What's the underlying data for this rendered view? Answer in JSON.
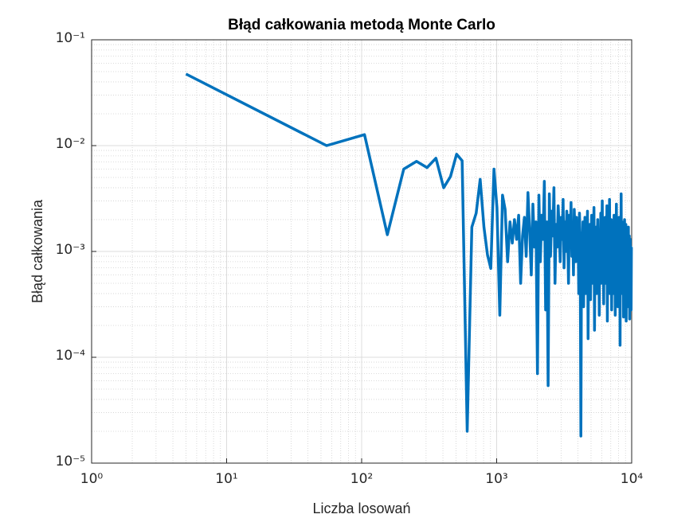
{
  "chart_data": {
    "type": "line",
    "title": "Błąd całkowania metodą Monte Carlo",
    "xlabel": "Liczba losowań",
    "ylabel": "Błąd całkowania",
    "xscale": "log",
    "yscale": "log",
    "grid": true,
    "minor_grid": true,
    "color": "#0072bd",
    "xlim": [
      1,
      10000
    ],
    "ylim": [
      1e-05,
      0.1
    ],
    "xticks": [
      {
        "value": 1,
        "label": "10⁰"
      },
      {
        "value": 10,
        "label": "10¹"
      },
      {
        "value": 100,
        "label": "10²"
      },
      {
        "value": 1000,
        "label": "10³"
      },
      {
        "value": 10000,
        "label": "10⁴"
      }
    ],
    "yticks": [
      {
        "value": 1e-05,
        "label": "10⁻⁵"
      },
      {
        "value": 0.0001,
        "label": "10⁻⁴"
      },
      {
        "value": 0.001,
        "label": "10⁻³"
      },
      {
        "value": 0.01,
        "label": "10⁻²"
      },
      {
        "value": 0.1,
        "label": "10⁻¹"
      }
    ],
    "x": [
      5,
      55,
      105,
      155,
      205,
      255,
      305,
      355,
      405,
      455,
      505,
      555,
      605,
      655,
      705,
      755,
      805,
      855,
      905,
      955,
      1005,
      1055,
      1105,
      1155,
      1205,
      1255,
      1305,
      1355,
      1405,
      1455,
      1505,
      1555,
      1605,
      1655,
      1705,
      1755,
      1805,
      1855,
      1905,
      1955,
      2005,
      2055,
      2105,
      2155,
      2205,
      2255,
      2305,
      2355,
      2405,
      2455,
      2505,
      2555,
      2605,
      2655,
      2705,
      2755,
      2805,
      2855,
      2905,
      2955,
      3005,
      3055,
      3105,
      3155,
      3205,
      3255,
      3305,
      3355,
      3405,
      3455,
      3505,
      3555,
      3605,
      3655,
      3705,
      3755,
      3805,
      3855,
      3905,
      3955,
      4005,
      4055,
      4105,
      4155,
      4205,
      4255,
      4305,
      4355,
      4405,
      4455,
      4505,
      4555,
      4605,
      4655,
      4705,
      4755,
      4805,
      4855,
      4905,
      4955,
      5005,
      5055,
      5105,
      5155,
      5205,
      5255,
      5305,
      5355,
      5405,
      5455,
      5505,
      5555,
      5605,
      5655,
      5705,
      5755,
      5805,
      5855,
      5905,
      5955,
      6005,
      6055,
      6105,
      6155,
      6205,
      6255,
      6305,
      6355,
      6405,
      6455,
      6505,
      6555,
      6605,
      6655,
      6705,
      6755,
      6805,
      6855,
      6905,
      6955,
      7005,
      7055,
      7105,
      7155,
      7205,
      7255,
      7305,
      7355,
      7405,
      7455,
      7505,
      7555,
      7605,
      7655,
      7705,
      7755,
      7805,
      7855,
      7905,
      7955,
      8005,
      8055,
      8105,
      8155,
      8205,
      8255,
      8305,
      8355,
      8405,
      8455,
      8505,
      8555,
      8605,
      8655,
      8705,
      8755,
      8805,
      8855,
      8905,
      8955,
      9005,
      9055,
      9105,
      9155,
      9205,
      9255,
      9305,
      9355,
      9405,
      9455,
      9505,
      9555,
      9605,
      9655,
      9705,
      9755,
      9805,
      9855,
      9905,
      9955
    ],
    "values": [
      0.0475,
      0.01,
      0.0127,
      0.00144,
      0.006,
      0.0071,
      0.0062,
      0.0076,
      0.004,
      0.0051,
      0.0083,
      0.0072,
      2e-05,
      0.0017,
      0.0023,
      0.0048,
      0.0017,
      0.00093,
      0.00069,
      0.006,
      0.0026,
      0.00025,
      0.0034,
      0.0025,
      0.0008,
      0.0019,
      0.0012,
      0.002,
      0.0013,
      0.0022,
      0.0005,
      0.0014,
      0.0021,
      0.0009,
      0.0036,
      0.0016,
      0.0006,
      0.0028,
      0.0011,
      0.0019,
      7e-05,
      0.0034,
      0.0008,
      0.0022,
      0.0013,
      0.0046,
      0.00028,
      0.0019,
      5.4e-05,
      0.0035,
      0.0009,
      0.0024,
      0.0014,
      0.004,
      0.0005,
      0.0018,
      0.0011,
      0.0027,
      0.0016,
      0.0008,
      0.0021,
      0.0013,
      0.0031,
      0.0007,
      0.0019,
      0.001,
      0.0024,
      0.0015,
      0.0005,
      0.0022,
      0.0012,
      0.0029,
      0.0009,
      0.0018,
      0.0006,
      0.0025,
      0.0014,
      0.0008,
      0.0021,
      0.0011,
      0.0017,
      0.0004,
      0.0023,
      0.0013,
      1.8e-05,
      0.0015,
      0.0006,
      0.0019,
      0.0003,
      0.0012,
      0.0021,
      0.0004,
      0.0016,
      0.0009,
      0.0024,
      0.00015,
      0.0013,
      0.0007,
      0.0018,
      0.00035,
      0.0011,
      0.0022,
      0.0005,
      0.0015,
      0.0009,
      0.0026,
      0.00018,
      0.0012,
      0.0007,
      0.0017,
      0.0004,
      0.0014,
      0.002,
      0.0006,
      0.0011,
      0.00025,
      0.0016,
      0.0009,
      0.0023,
      0.0005,
      0.0013,
      0.003,
      0.0007,
      0.0012,
      0.00032,
      0.0018,
      0.001,
      0.0021,
      0.0005,
      0.0014,
      0.0008,
      0.0027,
      0.00022,
      0.0012,
      0.0017,
      0.0006,
      0.001,
      0.0031,
      0.0004,
      0.0015,
      0.0009,
      0.002,
      0.00028,
      0.0013,
      0.0007,
      0.0018,
      0.0011,
      0.0004,
      0.0022,
      0.0008,
      0.0014,
      0.00025,
      0.0016,
      0.001,
      0.0028,
      0.0006,
      0.0012,
      0.0019,
      0.0003,
      0.0015,
      0.0009,
      0.0021,
      0.0005,
      0.0012,
      0.00013,
      0.0017,
      0.0008,
      0.0035,
      0.0006,
      0.0013,
      0.0019,
      0.0004,
      0.001,
      0.0016,
      0.00024,
      0.0012,
      0.0007,
      0.002,
      0.0004,
      0.0014,
      0.0009,
      0.0018,
      0.00022,
      0.0011,
      0.0006,
      0.0015,
      0.0003,
      0.0012,
      0.0008,
      0.0017,
      0.0004,
      0.001,
      0.0014,
      0.00023,
      0.0009,
      0.0013,
      0.0005,
      0.0011,
      0.00028,
      0.0011
    ]
  }
}
